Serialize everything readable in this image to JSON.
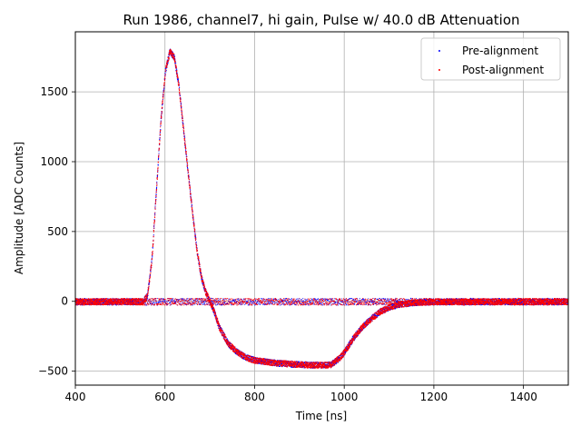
{
  "chart_data": {
    "type": "scatter",
    "title": "Run 1986, channel7, hi gain, Pulse w/ 40.0 dB Attenuation",
    "xlabel": "Time [ns]",
    "ylabel": "Amplitude [ADC Counts]",
    "xlim": [
      400,
      1500
    ],
    "ylim": [
      -600,
      1930
    ],
    "xticks": [
      400,
      600,
      800,
      1000,
      1200,
      1400
    ],
    "yticks": [
      -500,
      0,
      500,
      1000,
      1500
    ],
    "xtick_labels": [
      "400",
      "600",
      "800",
      "1000",
      "1200",
      "1400"
    ],
    "ytick_labels": [
      "−500",
      "0",
      "500",
      "1000",
      "1500"
    ],
    "grid": true,
    "legend_position": "top-right",
    "series": [
      {
        "name": "Pre-alignment",
        "color": "#0000ff",
        "marker": "point",
        "band": "baseline and pulse trace, drawn beneath the post-alignment points",
        "x": [
          400,
          500,
          550,
          560,
          570,
          580,
          590,
          600,
          610,
          620,
          630,
          640,
          650,
          660,
          670,
          680,
          690,
          700,
          710,
          720,
          740,
          760,
          780,
          800,
          850,
          900,
          950,
          970,
          990,
          1000,
          1020,
          1040,
          1060,
          1080,
          1100,
          1120,
          1150,
          1200,
          1300,
          1400,
          1500
        ],
        "y": [
          0,
          0,
          0,
          40,
          300,
          800,
          1300,
          1650,
          1790,
          1750,
          1550,
          1250,
          950,
          650,
          380,
          180,
          70,
          0,
          -80,
          -180,
          -300,
          -360,
          -400,
          -420,
          -440,
          -450,
          -455,
          -450,
          -400,
          -360,
          -260,
          -180,
          -120,
          -70,
          -40,
          -20,
          -8,
          0,
          0,
          0,
          0
        ]
      },
      {
        "name": "Post-alignment",
        "color": "#ff0000",
        "marker": "point",
        "x": [
          400,
          500,
          550,
          560,
          570,
          580,
          590,
          600,
          610,
          620,
          630,
          640,
          650,
          660,
          670,
          680,
          690,
          700,
          710,
          720,
          740,
          760,
          780,
          800,
          850,
          900,
          950,
          970,
          990,
          1000,
          1020,
          1040,
          1060,
          1080,
          1100,
          1120,
          1150,
          1200,
          1300,
          1400,
          1500
        ],
        "y": [
          0,
          0,
          0,
          40,
          300,
          800,
          1300,
          1650,
          1790,
          1750,
          1550,
          1250,
          950,
          650,
          380,
          180,
          70,
          0,
          -80,
          -180,
          -300,
          -360,
          -400,
          -420,
          -440,
          -450,
          -455,
          -450,
          -400,
          -360,
          -260,
          -180,
          -120,
          -70,
          -40,
          -20,
          -8,
          0,
          0,
          0,
          0
        ]
      }
    ],
    "baseline": {
      "y": 0,
      "noise": 25
    }
  }
}
